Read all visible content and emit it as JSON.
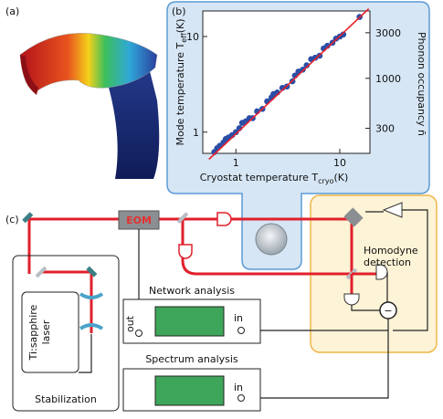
{
  "panel_labels": {
    "a": "(a)",
    "b": "(b)",
    "c": "(c)"
  },
  "chart_data": {
    "type": "scatter",
    "log_x": true,
    "log_y": true,
    "x_label": {
      "text": "Cryostat temperature T",
      "sub": "cryo",
      "unit": "(K)"
    },
    "y_label": {
      "text": "Mode temperature T",
      "sub": "eff",
      "unit": "(K)"
    },
    "y2_label": "Phonon occupancy n̄",
    "xlim": [
      0.48,
      19.5
    ],
    "ylim": [
      0.6,
      18.5
    ],
    "y2lim": [
      164,
      5070
    ],
    "xticks": [
      1,
      10
    ],
    "yticks": [
      1,
      10
    ],
    "y2ticks": [
      300,
      1000,
      3000
    ],
    "series": [
      {
        "type": "scatter",
        "color": "#2b4ea6",
        "x": [
          0.62,
          0.66,
          0.7,
          0.76,
          0.8,
          0.85,
          0.92,
          1.0,
          1.08,
          1.15,
          1.25,
          1.35,
          1.45,
          1.6,
          1.8,
          2.0,
          2.2,
          2.3,
          2.5,
          2.8,
          3.1,
          3.5,
          3.7,
          4.0,
          4.4,
          4.8,
          5.3,
          5.8,
          6.4,
          7.0,
          7.6,
          8.5,
          9.2,
          10.0,
          10.8,
          15.5
        ],
        "values": [
          0.62,
          0.68,
          0.72,
          0.78,
          0.85,
          0.88,
          0.93,
          1.0,
          1.1,
          1.25,
          1.3,
          1.4,
          1.4,
          1.65,
          1.75,
          2.1,
          2.3,
          2.5,
          2.6,
          2.9,
          3.0,
          3.4,
          3.9,
          4.3,
          4.5,
          5.0,
          5.8,
          6.0,
          6.3,
          7.5,
          8.0,
          8.6,
          9.5,
          10.0,
          10.5,
          16.0
        ]
      },
      {
        "type": "line",
        "color": "#e8202a",
        "x": [
          0.55,
          19
        ],
        "values": [
          0.52,
          19.5
        ]
      }
    ]
  },
  "diagram": {
    "eom": "EOM",
    "laser": [
      "Ti:sapphire",
      "laser"
    ],
    "stabilization": "Stabilization",
    "network": {
      "title": "Network analysis",
      "out": "out",
      "in": "in"
    },
    "spectrum": {
      "title": "Spectrum analysis",
      "in": "in"
    },
    "homodyne": [
      "Homodyne",
      "detection"
    ],
    "minus": "−"
  }
}
